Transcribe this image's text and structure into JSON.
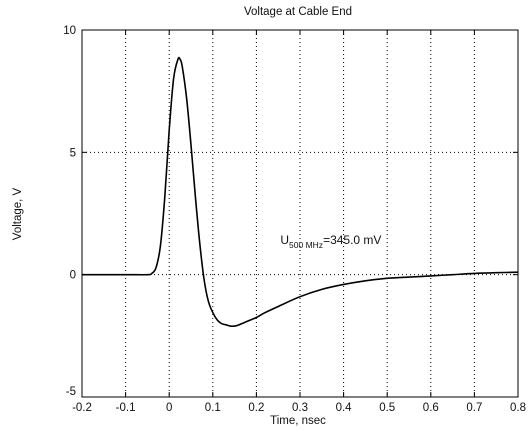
{
  "chart_data": {
    "type": "line",
    "title": "Voltage at Cable End",
    "xlabel": "Time, nsec",
    "ylabel": "Voltage, V",
    "xlim": [
      -0.2,
      0.8
    ],
    "ylim": [
      -5,
      10
    ],
    "x_ticks": [
      -0.2,
      -0.1,
      0,
      0.1,
      0.2,
      0.3,
      0.4,
      0.5,
      0.6,
      0.7,
      0.8
    ],
    "x_tick_labels": [
      "-0.2",
      "-0.1",
      "0",
      "0.1",
      "0.2",
      "0.3",
      "0.4",
      "0.5",
      "0.6",
      "0.7",
      "0.8"
    ],
    "y_ticks": [
      -5,
      0,
      5,
      10
    ],
    "y_tick_labels": [
      "-5",
      "0",
      "5",
      "10"
    ],
    "grid": true,
    "annotation": {
      "base": "U",
      "subscript": "500 MHz",
      "rest": "=345.0 mV",
      "x": 0.255,
      "y": 1.25
    },
    "series": [
      {
        "color": "#000000",
        "x": [
          -0.2,
          -0.1,
          -0.05,
          -0.04,
          -0.03,
          -0.02,
          -0.01,
          0,
          0.01,
          0.02,
          0.025,
          0.03,
          0.04,
          0.05,
          0.06,
          0.07,
          0.08,
          0.09,
          0.1,
          0.11,
          0.12,
          0.13,
          0.14,
          0.15,
          0.16,
          0.18,
          0.2,
          0.22,
          0.25,
          0.3,
          0.35,
          0.4,
          0.45,
          0.5,
          0.55,
          0.6,
          0.65,
          0.7,
          0.75,
          0.8
        ],
        "y": [
          0,
          0,
          0,
          0.05,
          0.3,
          1.2,
          3.2,
          5.9,
          8.0,
          8.8,
          8.8,
          8.5,
          7.2,
          5.3,
          3.2,
          1.3,
          -0.2,
          -1.1,
          -1.55,
          -1.85,
          -2.0,
          -2.05,
          -2.1,
          -2.1,
          -2.05,
          -1.9,
          -1.75,
          -1.55,
          -1.3,
          -0.9,
          -0.6,
          -0.4,
          -0.25,
          -0.15,
          -0.1,
          -0.05,
          0,
          0.05,
          0.08,
          0.1
        ]
      }
    ]
  }
}
